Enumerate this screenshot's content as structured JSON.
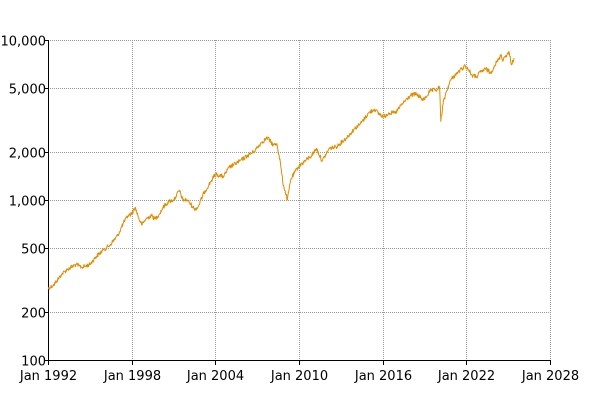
{
  "chart_data": {
    "type": "line",
    "title": "",
    "xlabel": "",
    "ylabel": "",
    "y_scale": "log",
    "grid": true,
    "legend": "none",
    "xlim": [
      "1992-01",
      "2028-01"
    ],
    "ylim": [
      100,
      10000
    ],
    "x_ticks": [
      "Jan 1992",
      "Jan 1998",
      "Jan 2004",
      "Jan 2010",
      "Jan 2016",
      "Jan 2022",
      "Jan 2028"
    ],
    "x_tick_dates": [
      "1992-01",
      "1998-01",
      "2004-01",
      "2010-01",
      "2016-01",
      "2022-01",
      "2028-01"
    ],
    "y_ticks": [
      {
        "value": 100,
        "label": "100"
      },
      {
        "value": 200,
        "label": "200"
      },
      {
        "value": 500,
        "label": "500"
      },
      {
        "value": 1000,
        "label": "1,000"
      },
      {
        "value": 2000,
        "label": "2,000"
      },
      {
        "value": 5000,
        "label": "5,000"
      },
      {
        "value": 10000,
        "label": "10,000"
      }
    ],
    "series": [
      {
        "color": "#e08c00",
        "points": [
          [
            "1992-01",
            280
          ],
          [
            "1992-06",
            295
          ],
          [
            "1993-01",
            345
          ],
          [
            "1993-06",
            370
          ],
          [
            "1994-01",
            395
          ],
          [
            "1994-06",
            380
          ],
          [
            "1995-01",
            395
          ],
          [
            "1995-06",
            440
          ],
          [
            "1996-01",
            490
          ],
          [
            "1996-06",
            520
          ],
          [
            "1997-01",
            600
          ],
          [
            "1997-06",
            720
          ],
          [
            "1997-10",
            800
          ],
          [
            "1998-01",
            820
          ],
          [
            "1998-04",
            900
          ],
          [
            "1998-08",
            740
          ],
          [
            "1998-10",
            700
          ],
          [
            "1999-01",
            760
          ],
          [
            "1999-06",
            800
          ],
          [
            "1999-09",
            760
          ],
          [
            "2000-01",
            820
          ],
          [
            "2000-04",
            900
          ],
          [
            "2000-09",
            980
          ],
          [
            "2001-01",
            1000
          ],
          [
            "2001-03",
            1050
          ],
          [
            "2001-06",
            1150
          ],
          [
            "2001-09",
            1000
          ],
          [
            "2002-01",
            1000
          ],
          [
            "2002-07",
            880
          ],
          [
            "2002-10",
            900
          ],
          [
            "2003-03",
            1100
          ],
          [
            "2003-09",
            1300
          ],
          [
            "2004-01",
            1450
          ],
          [
            "2004-08",
            1400
          ],
          [
            "2005-01",
            1600
          ],
          [
            "2005-10",
            1750
          ],
          [
            "2006-05",
            1900
          ],
          [
            "2006-10",
            2000
          ],
          [
            "2007-05",
            2300
          ],
          [
            "2007-10",
            2450
          ],
          [
            "2008-03",
            2200
          ],
          [
            "2008-06",
            2250
          ],
          [
            "2008-09",
            1700
          ],
          [
            "2008-11",
            1300
          ],
          [
            "2009-03",
            1000
          ],
          [
            "2009-06",
            1350
          ],
          [
            "2009-12",
            1600
          ],
          [
            "2010-06",
            1750
          ],
          [
            "2010-12",
            1900
          ],
          [
            "2011-04",
            2100
          ],
          [
            "2011-09",
            1750
          ],
          [
            "2012-03",
            2100
          ],
          [
            "2012-09",
            2150
          ],
          [
            "2013-06",
            2450
          ],
          [
            "2014-01",
            2800
          ],
          [
            "2014-06",
            3000
          ],
          [
            "2015-01",
            3500
          ],
          [
            "2015-06",
            3700
          ],
          [
            "2015-09",
            3500
          ],
          [
            "2016-02",
            3300
          ],
          [
            "2016-06",
            3500
          ],
          [
            "2016-12",
            3500
          ],
          [
            "2017-06",
            4000
          ],
          [
            "2018-01",
            4500
          ],
          [
            "2018-06",
            4600
          ],
          [
            "2018-12",
            4200
          ],
          [
            "2019-06",
            4800
          ],
          [
            "2019-12",
            4900
          ],
          [
            "2020-02",
            5100
          ],
          [
            "2020-03",
            3100
          ],
          [
            "2020-05",
            4000
          ],
          [
            "2020-08",
            4800
          ],
          [
            "2020-12",
            5700
          ],
          [
            "2021-06",
            6300
          ],
          [
            "2021-12",
            6900
          ],
          [
            "2022-03",
            6500
          ],
          [
            "2022-06",
            6000
          ],
          [
            "2022-10",
            5900
          ],
          [
            "2023-01",
            6300
          ],
          [
            "2023-06",
            6600
          ],
          [
            "2023-10",
            6200
          ],
          [
            "2024-01",
            6900
          ],
          [
            "2024-05",
            7600
          ],
          [
            "2024-07",
            8100
          ],
          [
            "2024-08",
            7500
          ],
          [
            "2024-11",
            8000
          ],
          [
            "2025-02",
            8300
          ],
          [
            "2025-04",
            7000
          ],
          [
            "2025-06",
            7700
          ]
        ]
      }
    ]
  }
}
